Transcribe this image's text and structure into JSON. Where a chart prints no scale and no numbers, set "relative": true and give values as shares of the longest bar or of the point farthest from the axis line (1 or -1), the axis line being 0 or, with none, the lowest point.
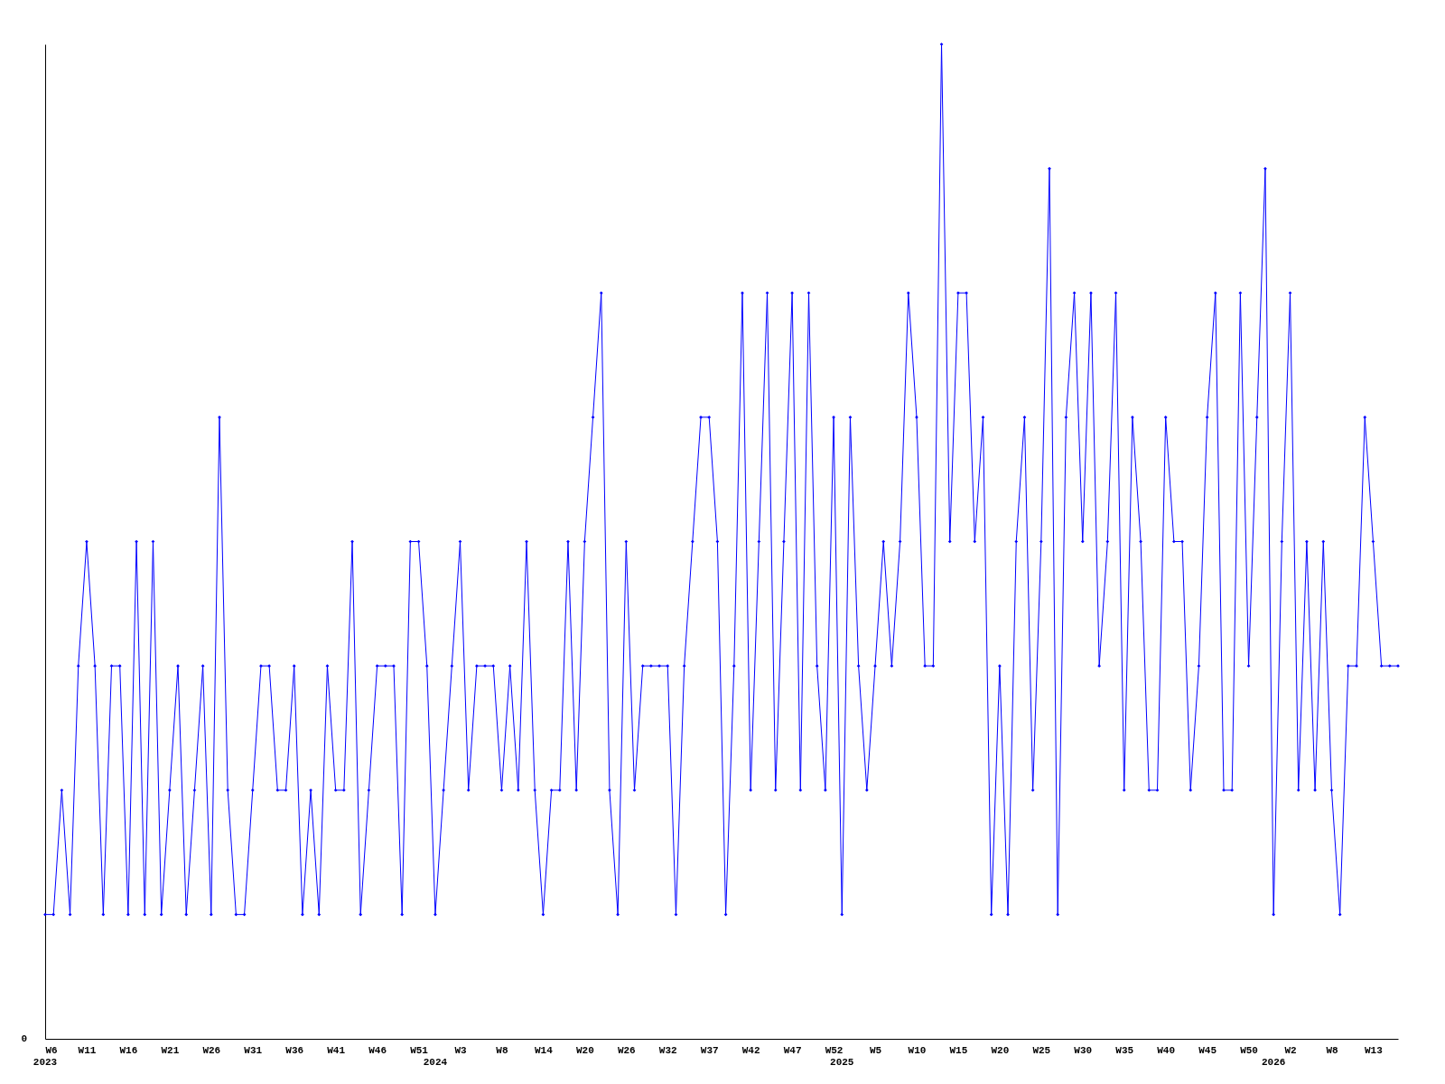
{
  "chart_data": {
    "type": "line",
    "relative": true,
    "marker": "diamond",
    "line_style": "solid",
    "grid": false,
    "annotations": [
      "0"
    ],
    "categories": [
      "W6\n2023",
      null,
      null,
      null,
      null,
      "W11",
      null,
      null,
      null,
      null,
      "W16",
      null,
      null,
      null,
      null,
      "W21",
      null,
      null,
      null,
      null,
      "W26",
      null,
      null,
      null,
      null,
      "W31",
      null,
      null,
      null,
      null,
      "W36",
      null,
      null,
      null,
      null,
      "W41",
      null,
      null,
      null,
      null,
      "W46",
      null,
      null,
      null,
      null,
      "W51",
      null,
      "\n2024",
      null,
      null,
      "W3",
      null,
      null,
      null,
      null,
      "W8",
      null,
      null,
      null,
      null,
      "W14",
      null,
      null,
      null,
      null,
      "W20",
      null,
      null,
      null,
      null,
      "W26",
      null,
      null,
      null,
      null,
      "W32",
      null,
      null,
      null,
      null,
      "W37",
      null,
      null,
      null,
      null,
      "W42",
      null,
      null,
      null,
      null,
      "W47",
      null,
      null,
      null,
      null,
      "W52",
      "\n2025",
      null,
      null,
      null,
      "W5",
      null,
      null,
      null,
      null,
      "W10",
      null,
      null,
      null,
      null,
      "W15",
      null,
      null,
      null,
      null,
      "W20",
      null,
      null,
      null,
      null,
      "W25",
      null,
      null,
      null,
      null,
      "W30",
      null,
      null,
      null,
      null,
      "W35",
      null,
      null,
      null,
      null,
      "W40",
      null,
      null,
      null,
      null,
      "W45",
      null,
      null,
      null,
      null,
      "W50",
      null,
      null,
      "\n2026",
      null,
      "W2",
      null,
      null,
      null,
      null,
      "W8",
      null,
      null,
      null,
      null,
      "W13",
      null,
      null,
      null
    ],
    "series": [
      {
        "color": "#0000ff",
        "values": [
          0.125,
          0.125,
          0.25,
          0.125,
          0.375,
          0.5,
          0.375,
          0.125,
          0.375,
          0.375,
          0.125,
          0.5,
          0.125,
          0.5,
          0.125,
          0.25,
          0.375,
          0.125,
          0.25,
          0.375,
          0.125,
          0.625,
          0.25,
          0.125,
          0.125,
          0.25,
          0.375,
          0.375,
          0.25,
          0.25,
          0.375,
          0.125,
          0.25,
          0.125,
          0.375,
          0.25,
          0.25,
          0.5,
          0.125,
          0.25,
          0.375,
          0.375,
          0.375,
          0.125,
          0.5,
          0.5,
          0.375,
          0.125,
          0.25,
          0.375,
          0.5,
          0.25,
          0.375,
          0.375,
          0.375,
          0.25,
          0.375,
          0.25,
          0.5,
          0.25,
          0.125,
          0.25,
          0.25,
          0.5,
          0.25,
          0.5,
          0.625,
          0.75,
          0.25,
          0.125,
          0.5,
          0.25,
          0.375,
          0.375,
          0.375,
          0.375,
          0.125,
          0.375,
          0.5,
          0.625,
          0.625,
          0.5,
          0.125,
          0.375,
          0.75,
          0.25,
          0.5,
          0.75,
          0.25,
          0.5,
          0.75,
          0.25,
          0.75,
          0.375,
          0.25,
          0.625,
          0.125,
          0.625,
          0.375,
          0.25,
          0.375,
          0.5,
          0.375,
          0.5,
          0.75,
          0.625,
          0.375,
          0.375,
          1,
          0.5,
          0.75,
          0.75,
          0.5,
          0.625,
          0.125,
          0.375,
          0.125,
          0.5,
          0.625,
          0.25,
          0.5,
          0.875,
          0.125,
          0.625,
          0.75,
          0.5,
          0.75,
          0.375,
          0.5,
          0.75,
          0.25,
          0.625,
          0.5,
          0.25,
          0.25,
          0.625,
          0.5,
          0.5,
          0.25,
          0.375,
          0.625,
          0.75,
          0.25,
          0.25,
          0.75,
          0.375,
          0.625,
          0.875,
          0.125,
          0.5,
          0.75,
          0.25,
          0.5,
          0.25,
          0.5,
          0.25,
          0.125,
          0.375,
          0.375,
          0.625,
          0.5,
          0.375,
          0.375,
          0.375
        ]
      }
    ]
  }
}
